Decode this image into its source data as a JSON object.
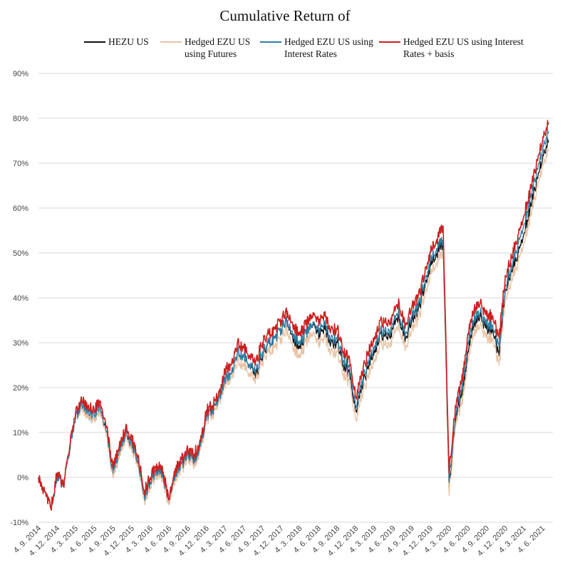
{
  "chart_data": {
    "type": "line",
    "title": "Cumulative Return of",
    "xlabel": "",
    "ylabel": "",
    "ylim": [
      -0.1,
      0.9
    ],
    "y_ticks": [
      "-10%",
      "0%",
      "10%",
      "20%",
      "30%",
      "40%",
      "50%",
      "60%",
      "70%",
      "80%",
      "90%"
    ],
    "x_ticks": [
      "4. 9. 2014",
      "4. 12. 2014",
      "4. 3. 2015",
      "4. 6. 2015",
      "4. 9. 2015",
      "4. 12. 2015",
      "4. 3. 2016",
      "4. 6. 2016",
      "4. 9. 2016",
      "4. 12. 2016",
      "4. 3. 2017",
      "4. 6. 2017",
      "4. 9. 2017",
      "4. 12. 2017",
      "4. 3. 2018",
      "4. 6. 2018",
      "4. 9. 2018",
      "4. 12. 2018",
      "4. 3. 2019",
      "4. 6. 2019",
      "4. 9. 2019",
      "4. 12. 2019",
      "4. 3. 2020",
      "4. 6. 2020",
      "4. 9. 2020",
      "4. 12. 2020",
      "4. 3. 2021",
      "4. 6. 2021"
    ],
    "grid": true,
    "legend_position": "top",
    "x": [
      "2014-09-04",
      "2014-10-04",
      "2014-11-04",
      "2014-12-04",
      "2015-01-04",
      "2015-02-04",
      "2015-03-04",
      "2015-04-04",
      "2015-05-04",
      "2015-06-04",
      "2015-07-04",
      "2015-08-04",
      "2015-09-04",
      "2015-10-04",
      "2015-11-04",
      "2015-12-04",
      "2016-01-04",
      "2016-02-04",
      "2016-03-04",
      "2016-04-04",
      "2016-05-04",
      "2016-06-04",
      "2016-07-04",
      "2016-08-04",
      "2016-09-04",
      "2016-10-04",
      "2016-11-04",
      "2016-12-04",
      "2017-01-04",
      "2017-02-04",
      "2017-03-04",
      "2017-04-04",
      "2017-05-04",
      "2017-06-04",
      "2017-07-04",
      "2017-08-04",
      "2017-09-04",
      "2017-10-04",
      "2017-11-04",
      "2017-12-04",
      "2018-01-04",
      "2018-02-04",
      "2018-03-04",
      "2018-04-04",
      "2018-05-04",
      "2018-06-04",
      "2018-07-04",
      "2018-08-04",
      "2018-09-04",
      "2018-10-04",
      "2018-11-04",
      "2018-12-04",
      "2019-01-04",
      "2019-02-04",
      "2019-03-04",
      "2019-04-04",
      "2019-05-04",
      "2019-06-04",
      "2019-07-04",
      "2019-08-04",
      "2019-09-04",
      "2019-10-04",
      "2019-11-04",
      "2019-12-04",
      "2020-01-04",
      "2020-02-04",
      "2020-03-04",
      "2020-04-04",
      "2020-05-04",
      "2020-06-04",
      "2020-07-04",
      "2020-08-04",
      "2020-09-04",
      "2020-10-04",
      "2020-11-04",
      "2020-12-04",
      "2021-01-04",
      "2021-02-04",
      "2021-03-04",
      "2021-04-04",
      "2021-05-04",
      "2021-06-04",
      "2021-07-04"
    ],
    "series": [
      {
        "name": "HEZU US",
        "color": "#111111",
        "values": [
          0.0,
          -0.03,
          -0.07,
          0.0,
          -0.02,
          0.06,
          0.13,
          0.16,
          0.14,
          0.13,
          0.15,
          0.1,
          0.0,
          0.05,
          0.1,
          0.07,
          0.04,
          -0.04,
          -0.01,
          0.02,
          0.0,
          -0.06,
          0.01,
          0.03,
          0.05,
          0.04,
          0.07,
          0.14,
          0.15,
          0.18,
          0.22,
          0.23,
          0.28,
          0.27,
          0.25,
          0.23,
          0.27,
          0.3,
          0.31,
          0.33,
          0.35,
          0.31,
          0.29,
          0.32,
          0.34,
          0.32,
          0.33,
          0.3,
          0.3,
          0.25,
          0.23,
          0.15,
          0.2,
          0.25,
          0.28,
          0.32,
          0.31,
          0.33,
          0.36,
          0.31,
          0.35,
          0.37,
          0.42,
          0.47,
          0.5,
          0.52,
          -0.03,
          0.13,
          0.18,
          0.28,
          0.34,
          0.36,
          0.33,
          0.33,
          0.27,
          0.42,
          0.46,
          0.5,
          0.54,
          0.6,
          0.65,
          0.71,
          0.75
        ]
      },
      {
        "name": "Hedged EZU US using Futures",
        "color": "#e8c2a3",
        "values": [
          0.0,
          -0.03,
          -0.07,
          0.0,
          -0.02,
          0.06,
          0.13,
          0.15,
          0.14,
          0.13,
          0.15,
          0.09,
          0.0,
          0.05,
          0.09,
          0.07,
          0.03,
          -0.05,
          -0.02,
          0.01,
          -0.01,
          -0.06,
          0.0,
          0.02,
          0.04,
          0.03,
          0.06,
          0.13,
          0.14,
          0.17,
          0.21,
          0.22,
          0.26,
          0.25,
          0.23,
          0.22,
          0.26,
          0.28,
          0.29,
          0.31,
          0.33,
          0.29,
          0.27,
          0.3,
          0.32,
          0.3,
          0.31,
          0.28,
          0.28,
          0.23,
          0.21,
          0.13,
          0.18,
          0.23,
          0.26,
          0.3,
          0.29,
          0.31,
          0.34,
          0.29,
          0.33,
          0.35,
          0.4,
          0.45,
          0.48,
          0.5,
          -0.04,
          0.12,
          0.16,
          0.26,
          0.32,
          0.34,
          0.31,
          0.31,
          0.25,
          0.4,
          0.44,
          0.48,
          0.52,
          0.58,
          0.63,
          0.69,
          0.73
        ]
      },
      {
        "name": "Hedged EZU US using Interest Rates",
        "color": "#2e7ea3",
        "values": [
          0.0,
          -0.03,
          -0.07,
          0.0,
          -0.02,
          0.06,
          0.13,
          0.16,
          0.15,
          0.14,
          0.16,
          0.1,
          0.01,
          0.06,
          0.1,
          0.08,
          0.04,
          -0.04,
          -0.01,
          0.02,
          0.0,
          -0.05,
          0.01,
          0.03,
          0.05,
          0.04,
          0.07,
          0.14,
          0.15,
          0.18,
          0.22,
          0.23,
          0.28,
          0.27,
          0.25,
          0.24,
          0.28,
          0.3,
          0.31,
          0.33,
          0.35,
          0.32,
          0.3,
          0.32,
          0.34,
          0.33,
          0.34,
          0.31,
          0.31,
          0.26,
          0.24,
          0.16,
          0.21,
          0.26,
          0.29,
          0.33,
          0.32,
          0.34,
          0.37,
          0.32,
          0.36,
          0.38,
          0.43,
          0.48,
          0.51,
          0.53,
          -0.01,
          0.14,
          0.19,
          0.3,
          0.35,
          0.37,
          0.34,
          0.34,
          0.29,
          0.43,
          0.47,
          0.52,
          0.56,
          0.62,
          0.67,
          0.73,
          0.77
        ]
      },
      {
        "name": "Hedged EZU US using Interest Rates + basis",
        "color": "#cc1f1f",
        "values": [
          0.0,
          -0.03,
          -0.07,
          0.01,
          -0.02,
          0.07,
          0.14,
          0.17,
          0.16,
          0.15,
          0.17,
          0.11,
          0.02,
          0.07,
          0.11,
          0.09,
          0.05,
          -0.03,
          0.0,
          0.03,
          0.01,
          -0.05,
          0.02,
          0.04,
          0.06,
          0.05,
          0.08,
          0.15,
          0.16,
          0.19,
          0.24,
          0.25,
          0.3,
          0.29,
          0.27,
          0.26,
          0.3,
          0.32,
          0.33,
          0.35,
          0.37,
          0.34,
          0.32,
          0.34,
          0.36,
          0.35,
          0.36,
          0.33,
          0.33,
          0.28,
          0.26,
          0.18,
          0.23,
          0.28,
          0.31,
          0.35,
          0.34,
          0.36,
          0.39,
          0.34,
          0.38,
          0.4,
          0.45,
          0.5,
          0.53,
          0.56,
          0.01,
          0.16,
          0.21,
          0.32,
          0.37,
          0.39,
          0.36,
          0.36,
          0.31,
          0.45,
          0.49,
          0.54,
          0.58,
          0.64,
          0.69,
          0.75,
          0.79
        ]
      }
    ]
  }
}
